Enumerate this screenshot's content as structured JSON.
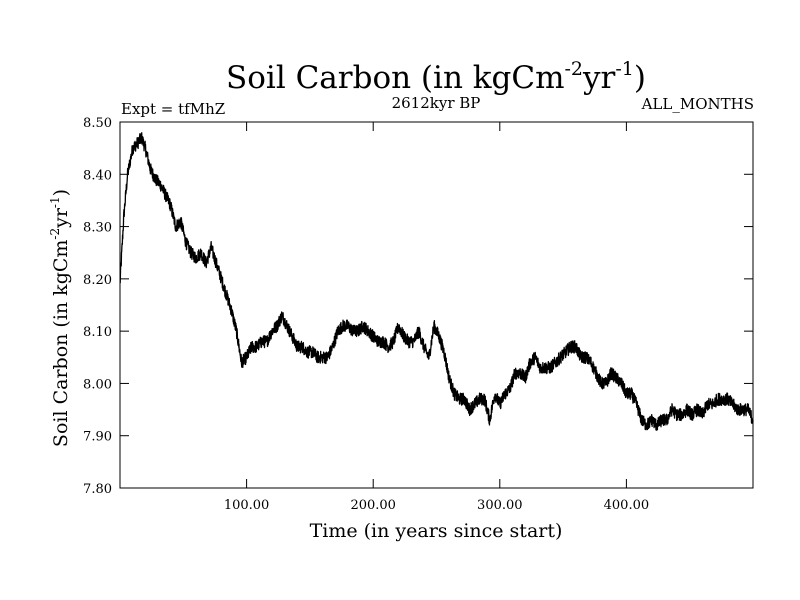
{
  "chart_data": {
    "type": "line",
    "title_main": "Soil Carbon (in kgCm",
    "title_sup1": "-2",
    "title_mid": "yr",
    "title_sup2": "-1",
    "title_end": ")",
    "expt_label": "Expt = tfMhZ",
    "period_label": "2612kyr BP",
    "months_label": "ALL_MONTHS",
    "xlabel": "Time (in years since start)",
    "ylabel_main": "Soil Carbon (in kgCm",
    "ylabel_sup1": "-2",
    "ylabel_mid": "yr",
    "ylabel_sup2": "-1",
    "ylabel_end": ")",
    "xlim": [
      0,
      500
    ],
    "ylim": [
      7.8,
      8.5
    ],
    "x_ticks": [
      100,
      200,
      300,
      400
    ],
    "x_tick_labels": [
      "100.00",
      "200.00",
      "300.00",
      "400.00"
    ],
    "y_ticks": [
      7.8,
      7.9,
      8.0,
      8.1,
      8.2,
      8.3,
      8.4,
      8.5
    ],
    "y_tick_labels": [
      "7.80",
      "7.90",
      "8.00",
      "8.10",
      "8.20",
      "8.30",
      "8.40",
      "8.50"
    ],
    "series": [
      {
        "name": "Soil Carbon",
        "color": "#000000",
        "noise": 0.012,
        "x": [
          0,
          3,
          6,
          10,
          14,
          17,
          20,
          24,
          28,
          32,
          36,
          40,
          44,
          48,
          52,
          56,
          60,
          64,
          68,
          72,
          76,
          80,
          84,
          88,
          92,
          96,
          100,
          104,
          108,
          112,
          116,
          120,
          124,
          128,
          132,
          136,
          140,
          144,
          148,
          152,
          156,
          160,
          164,
          168,
          172,
          176,
          180,
          184,
          188,
          192,
          196,
          200,
          204,
          208,
          212,
          216,
          220,
          224,
          228,
          232,
          236,
          240,
          244,
          248,
          252,
          256,
          260,
          264,
          268,
          272,
          276,
          280,
          284,
          288,
          292,
          296,
          300,
          304,
          308,
          312,
          316,
          320,
          324,
          328,
          332,
          336,
          340,
          344,
          348,
          352,
          356,
          360,
          364,
          368,
          372,
          376,
          380,
          384,
          388,
          392,
          396,
          400,
          404,
          408,
          412,
          416,
          420,
          424,
          428,
          432,
          436,
          440,
          444,
          448,
          452,
          456,
          460,
          464,
          468,
          472,
          476,
          480,
          484,
          488,
          492,
          496,
          500
        ],
        "values": [
          8.19,
          8.32,
          8.4,
          8.45,
          8.46,
          8.47,
          8.45,
          8.41,
          8.39,
          8.38,
          8.36,
          8.34,
          8.3,
          8.31,
          8.27,
          8.25,
          8.24,
          8.25,
          8.23,
          8.26,
          8.23,
          8.2,
          8.17,
          8.14,
          8.1,
          8.04,
          8.05,
          8.07,
          8.07,
          8.08,
          8.08,
          8.1,
          8.11,
          8.13,
          8.11,
          8.09,
          8.07,
          8.07,
          8.06,
          8.06,
          8.05,
          8.05,
          8.05,
          8.07,
          8.1,
          8.11,
          8.11,
          8.1,
          8.1,
          8.11,
          8.1,
          8.09,
          8.08,
          8.08,
          8.07,
          8.08,
          8.11,
          8.09,
          8.08,
          8.08,
          8.1,
          8.07,
          8.05,
          8.11,
          8.09,
          8.06,
          8.01,
          7.98,
          7.97,
          7.97,
          7.95,
          7.96,
          7.97,
          7.97,
          7.93,
          7.98,
          7.96,
          7.98,
          7.99,
          8.02,
          8.02,
          8.01,
          8.04,
          8.05,
          8.03,
          8.03,
          8.03,
          8.04,
          8.05,
          8.06,
          8.07,
          8.07,
          8.05,
          8.05,
          8.04,
          8.02,
          8.0,
          8.0,
          8.02,
          8.01,
          8.0,
          7.98,
          7.98,
          7.96,
          7.93,
          7.92,
          7.93,
          7.92,
          7.93,
          7.93,
          7.95,
          7.94,
          7.94,
          7.95,
          7.94,
          7.95,
          7.94,
          7.96,
          7.96,
          7.97,
          7.97,
          7.97,
          7.96,
          7.95,
          7.95,
          7.95,
          7.93
        ]
      }
    ]
  }
}
